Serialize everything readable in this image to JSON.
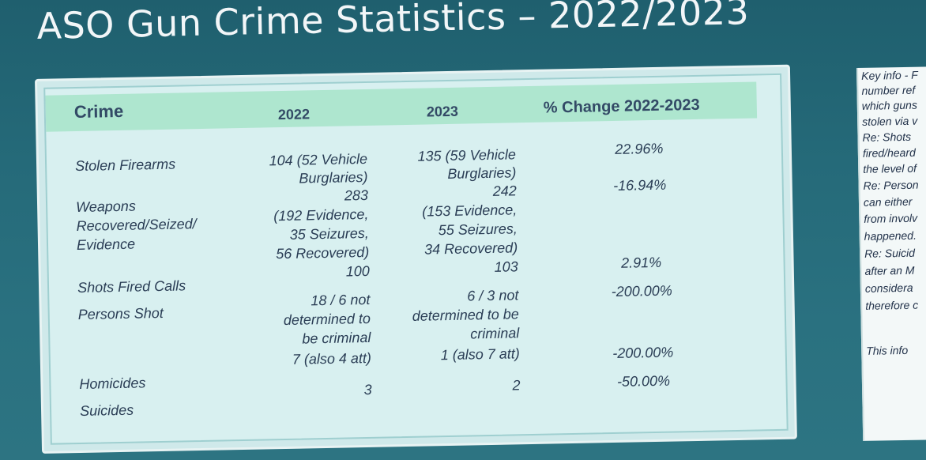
{
  "title": "ASO Gun Crime Statistics – 2022/2023",
  "table": {
    "headers": [
      "Crime",
      "2022",
      "2023",
      "% Change 2022-2023"
    ],
    "rows": [
      {
        "crime": "Stolen Firearms",
        "y2022": [
          "104 (52 Vehicle",
          "Burglaries)"
        ],
        "y2023": [
          "135 (59 Vehicle",
          "Burglaries)"
        ],
        "change": "22.96%"
      },
      {
        "crime": [
          "Weapons",
          "Recovered/Seized/",
          "Evidence"
        ],
        "y2022": [
          "283",
          "(192 Evidence,",
          "35 Seizures,",
          "56 Recovered)"
        ],
        "y2023": [
          "242",
          "(153 Evidence,",
          "55 Seizures,",
          "34 Recovered)"
        ],
        "change": "-16.94%"
      },
      {
        "crime": "Shots Fired Calls",
        "y2022": [
          "100"
        ],
        "y2023": [
          "103"
        ],
        "change": "2.91%"
      },
      {
        "crime": "Persons Shot",
        "y2022": [
          "18 / 6 not",
          "determined to",
          "be criminal"
        ],
        "y2023": [
          "6 / 3 not",
          "determined to be",
          "criminal"
        ],
        "change": "-200.00%"
      },
      {
        "crime": "Homicides",
        "y2022": [
          "7 (also 4 att)"
        ],
        "y2023": [
          "1 (also 7 att)"
        ],
        "change": "-200.00%"
      },
      {
        "crime": "Suicides",
        "y2022": [
          "3"
        ],
        "y2023": [
          "2"
        ],
        "change": "-50.00%"
      }
    ]
  },
  "side_note": {
    "lines": [
      "Key info - F",
      "number ref",
      "which guns",
      "stolen via v",
      "Re: Shots",
      "fired/heard",
      "the level of",
      "Re: Person",
      "can either",
      "from involv",
      "happened.",
      "Re: Suicid",
      "after an M",
      "considera",
      "therefore c",
      "",
      "This info"
    ]
  }
}
